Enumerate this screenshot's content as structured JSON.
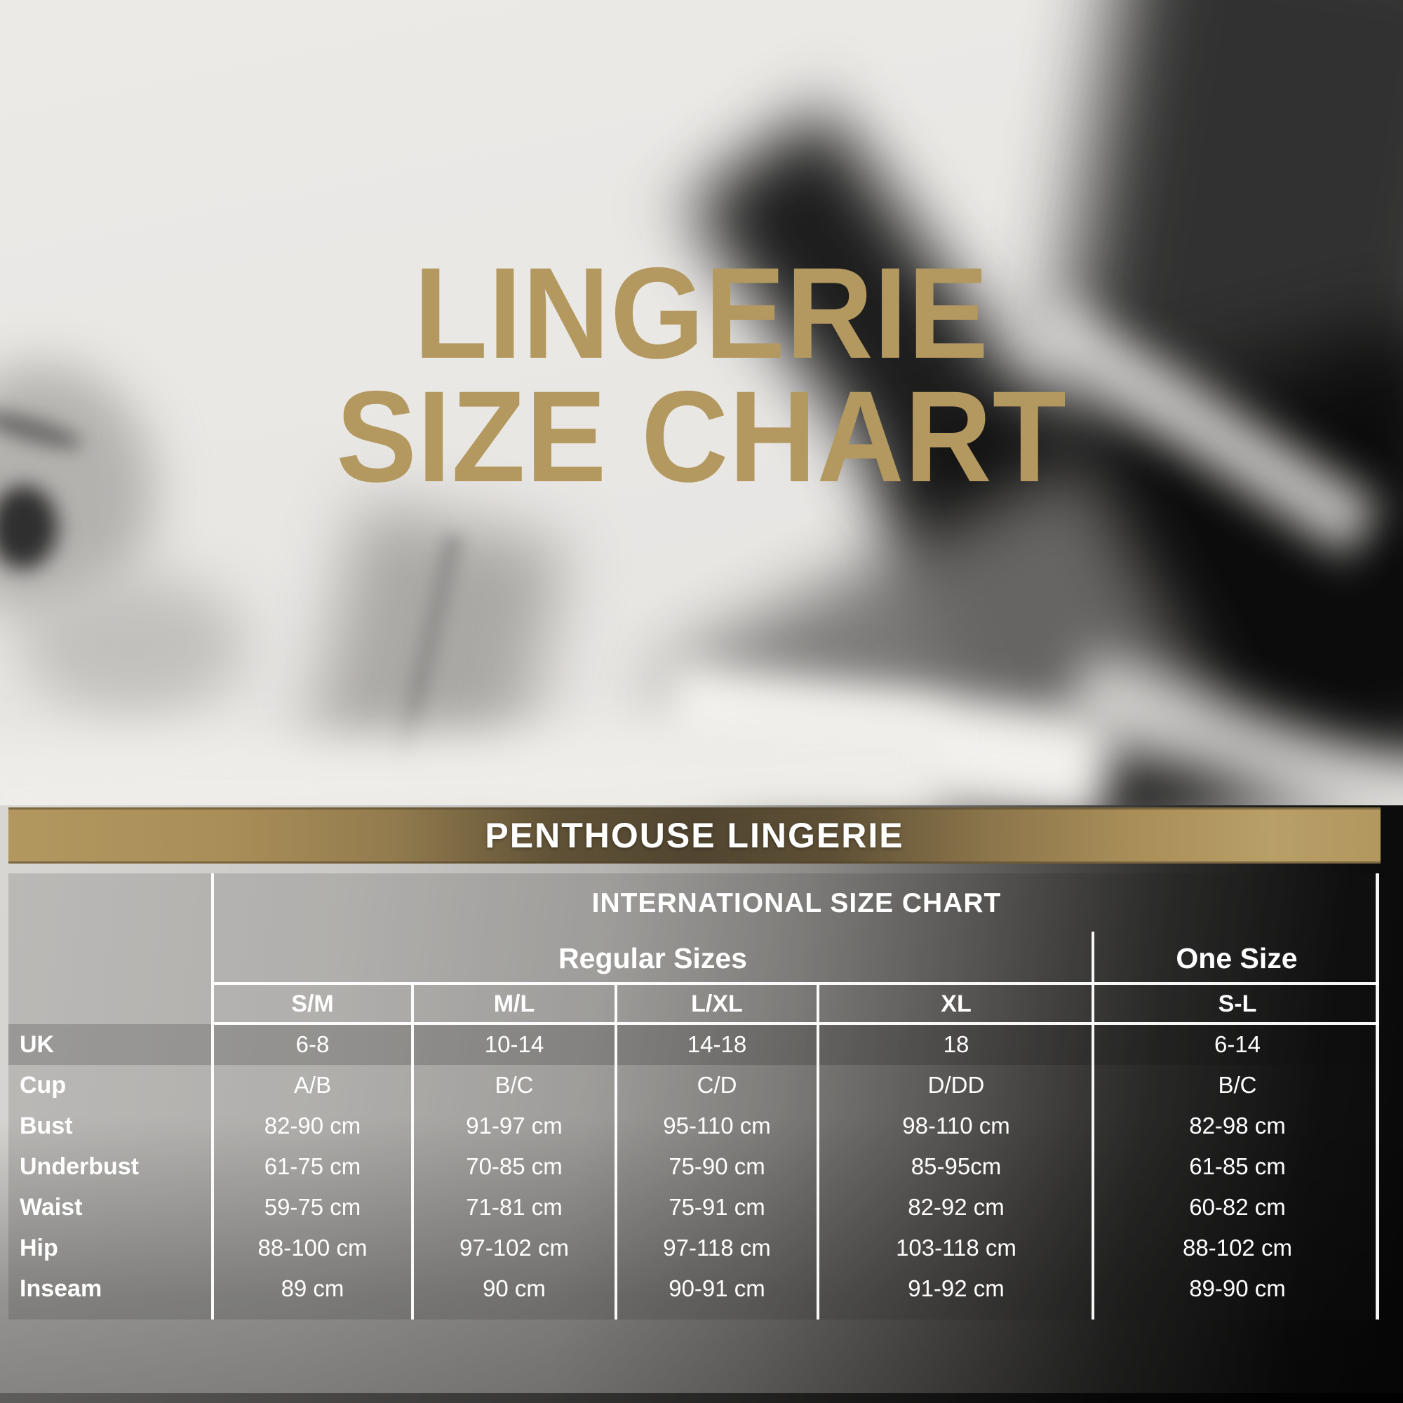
{
  "title": {
    "line1": "LINGERIE",
    "line2": "SIZE CHART"
  },
  "banner": {
    "label": "PENTHOUSE LINGERIE"
  },
  "colors": {
    "title_gold": "#b3985f",
    "banner_gold_light": "#b2975f",
    "banner_gold_dark": "#51452f",
    "banner_text": "#ffffff",
    "table_text": "#ffffff",
    "grid_line": "#ffffff"
  },
  "chart_data": {
    "type": "table",
    "title": "INTERNATIONAL SIZE CHART",
    "column_groups": [
      {
        "label": "Regular Sizes",
        "span": 4
      },
      {
        "label": "One Size",
        "span": 1
      }
    ],
    "columns": [
      "S/M",
      "M/L",
      "L/XL",
      "XL",
      "S-L"
    ],
    "rows": [
      {
        "label": "UK",
        "highlight": true,
        "values": [
          "6-8",
          "10-14",
          "14-18",
          "18",
          "6-14"
        ]
      },
      {
        "label": "Cup",
        "values": [
          "A/B",
          "B/C",
          "C/D",
          "D/DD",
          "B/C"
        ]
      },
      {
        "label": "Bust",
        "values": [
          "82-90 cm",
          "91-97 cm",
          "95-110 cm",
          "98-110 cm",
          "82-98 cm"
        ]
      },
      {
        "label": "Underbust",
        "values": [
          "61-75 cm",
          "70-85 cm",
          "75-90 cm",
          "85-95cm",
          "61-85 cm"
        ]
      },
      {
        "label": "Waist",
        "values": [
          "59-75 cm",
          "71-81 cm",
          "75-91 cm",
          "82-92 cm",
          "60-82 cm"
        ]
      },
      {
        "label": "Hip",
        "values": [
          "88-100 cm",
          "97-102 cm",
          "97-118 cm",
          "103-118 cm",
          "88-102 cm"
        ]
      },
      {
        "label": "Inseam",
        "values": [
          "89 cm",
          "90 cm",
          "90-91 cm",
          "91-92 cm",
          "89-90 cm"
        ]
      }
    ]
  }
}
